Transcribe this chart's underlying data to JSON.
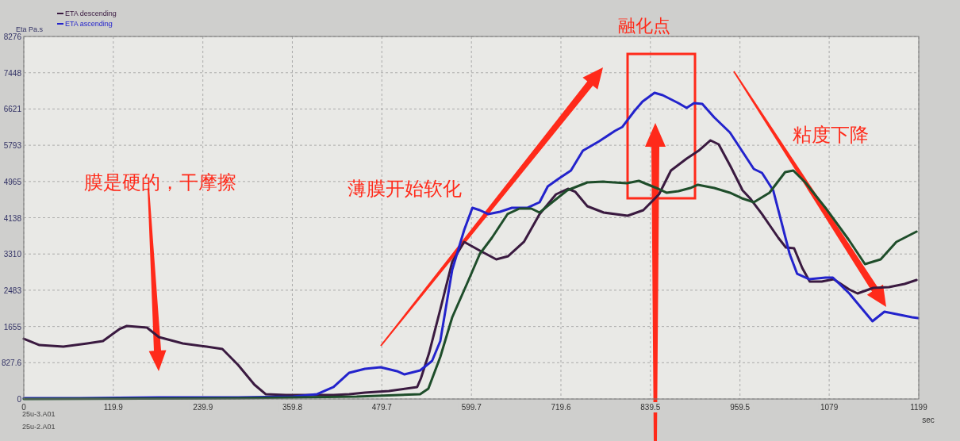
{
  "chart_data": {
    "type": "line",
    "xlabel": "sec",
    "ylabel": "Eta Pa.s",
    "xlim": [
      0,
      1199
    ],
    "ylim": [
      0,
      8276
    ],
    "xticks": [
      0,
      119.9,
      239.9,
      359.8,
      479.7,
      599.7,
      719.6,
      839.5,
      959.5,
      1079,
      1199
    ],
    "yticks": [
      0,
      827.6,
      1655,
      2483,
      3310,
      4138,
      4965,
      5793,
      6621,
      7448,
      8276
    ],
    "grid": true,
    "legend": "top left",
    "annotations": [
      "融化点",
      "薄膜开始软化",
      "粘度下降",
      "膜是硬的，干摩擦",
      "25u-3.A01",
      "25u-2.A01"
    ],
    "series": [
      {
        "name": "ETA descending",
        "color": "#3a1a40",
        "x": [
          0,
          21,
          53,
          85,
          106,
          128,
          138,
          165,
          181,
          213,
          245,
          266,
          287,
          309,
          324,
          351,
          383,
          415,
          436,
          457,
          489,
          527,
          532,
          543,
          558,
          574,
          590,
          611,
          633,
          649,
          670,
          691,
          713,
          729,
          739,
          755,
          777,
          809,
          830,
          851,
          867,
          888,
          904,
          920,
          931,
          947,
          963,
          973,
          989,
          1011,
          1021,
          1032,
          1043,
          1053,
          1069,
          1085,
          1106,
          1117,
          1138,
          1159,
          1180,
          1196
        ],
        "values": [
          1376,
          1231,
          1195,
          1268,
          1322,
          1594,
          1666,
          1630,
          1413,
          1268,
          1195,
          1141,
          779,
          326,
          109,
          91,
          91,
          91,
          109,
          145,
          181,
          272,
          471,
          1050,
          2046,
          3133,
          3586,
          3387,
          3187,
          3260,
          3586,
          4220,
          4672,
          4799,
          4727,
          4401,
          4256,
          4183,
          4310,
          4672,
          5216,
          5487,
          5668,
          5904,
          5813,
          5306,
          4763,
          4582,
          4220,
          3676,
          3459,
          3441,
          2988,
          2680,
          2680,
          2735,
          2499,
          2409,
          2535,
          2554,
          2626,
          2717
        ]
      },
      {
        "name": "ETA ascending",
        "color": "#2323cc",
        "x": [
          0,
          74,
          181,
          287,
          361,
          393,
          415,
          436,
          457,
          478,
          500,
          510,
          531,
          547,
          558,
          574,
          590,
          601,
          611,
          622,
          638,
          654,
          675,
          691,
          702,
          717,
          733,
          749,
          771,
          792,
          802,
          818,
          829,
          845,
          856,
          877,
          888,
          898,
          909,
          925,
          946,
          962,
          978,
          989,
          1004,
          1015,
          1026,
          1036,
          1052,
          1074,
          1084,
          1106,
          1121,
          1137,
          1153,
          1169,
          1190,
          1198
        ],
        "values": [
          18,
          18,
          36,
          36,
          54,
          109,
          272,
          598,
          688,
          724,
          634,
          561,
          652,
          869,
          1322,
          2952,
          3858,
          4365,
          4310,
          4220,
          4274,
          4365,
          4365,
          4491,
          4853,
          5034,
          5216,
          5668,
          5886,
          6121,
          6212,
          6574,
          6791,
          6990,
          6936,
          6755,
          6646,
          6755,
          6737,
          6429,
          6085,
          5668,
          5252,
          5161,
          4763,
          4039,
          3314,
          2861,
          2735,
          2771,
          2771,
          2409,
          2101,
          1775,
          1992,
          1938,
          1865,
          1847
        ]
      },
      {
        "color": "#1e4d2a",
        "x": [
          0,
          287,
          446,
          531,
          542,
          558,
          574,
          595,
          611,
          627,
          648,
          664,
          680,
          691,
          712,
          728,
          755,
          776,
          808,
          824,
          850,
          861,
          877,
          893,
          903,
          925,
          946,
          962,
          978,
          999,
          1020,
          1031,
          1047,
          1074,
          1105,
          1127,
          1148,
          1169,
          1196
        ],
        "values": [
          0,
          18,
          54,
          109,
          235,
          960,
          1865,
          2680,
          3314,
          3676,
          4220,
          4346,
          4346,
          4256,
          4546,
          4763,
          4944,
          4962,
          4926,
          4980,
          4799,
          4709,
          4745,
          4817,
          4890,
          4817,
          4709,
          4582,
          4491,
          4709,
          5179,
          5216,
          4944,
          4365,
          3640,
          3079,
          3187,
          3586,
          3821
        ]
      }
    ]
  }
}
